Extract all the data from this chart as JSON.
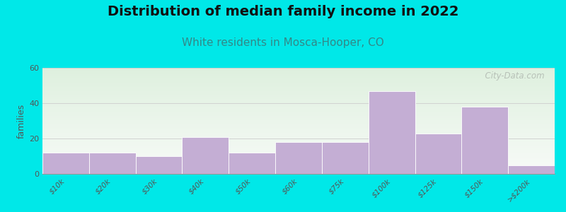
{
  "title": "Distribution of median family income in 2022",
  "subtitle": "White residents in Mosca-Hooper, CO",
  "ylabel": "families",
  "categories": [
    "$10k",
    "$20k",
    "$30k",
    "$40k",
    "$50k",
    "$60k",
    "$75k",
    "$100k",
    "$125k",
    "$150k",
    ">$200k"
  ],
  "values": [
    12,
    12,
    10,
    21,
    12,
    18,
    18,
    47,
    23,
    38,
    5
  ],
  "bar_color": "#c4aed4",
  "bar_edgecolor": "#ffffff",
  "ylim": [
    0,
    60
  ],
  "yticks": [
    0,
    20,
    40,
    60
  ],
  "background_outer": "#00e8e8",
  "plot_bg_top_color": "#ddeedd",
  "plot_bg_bottom_color": "#f8f8f4",
  "title_fontsize": 14,
  "subtitle_fontsize": 11,
  "subtitle_color": "#338888",
  "watermark": "  City-Data.com",
  "watermark_color": "#b0b8b0"
}
